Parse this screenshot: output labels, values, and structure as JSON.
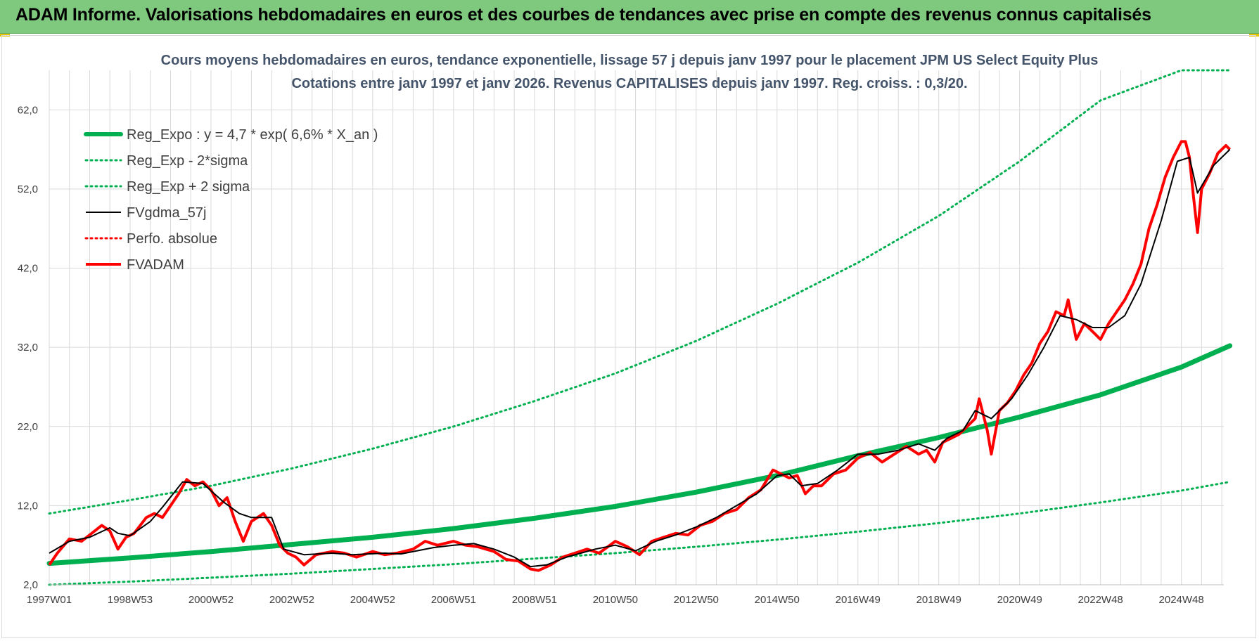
{
  "banner": {
    "title": "ADAM Informe. Valorisations hebdomadaires en euros et des courbes de tendances avec prise en compte des revenus connus capitalisés"
  },
  "colors": {
    "banner": "#7fc97f",
    "reg_expo": "#00b050",
    "fvgdma": "#000000",
    "fvadam": "#ff0000",
    "grid": "#d9d9d9",
    "title": "#44546a"
  },
  "chart_data": {
    "type": "line",
    "title": "Cours moyens hebdomadaires en euros, tendance exponentielle, lissage 57 j depuis janv 1997 pour le placement JPM US Select Equity Plus",
    "subtitle": "Cotations entre janv 1997 et janv 2026. Revenus CAPITALISES depuis janv 1997. Reg. croiss. : 0,3/20.",
    "xlabel": "",
    "ylabel": "",
    "xlim": [
      1997.0,
      2026.05
    ],
    "ylim": [
      2.0,
      67.0
    ],
    "grid": true,
    "legend_position": "top-left",
    "x_ticks": [
      {
        "label": "1997W01",
        "x": 1997.0
      },
      {
        "label": "1998W53",
        "x": 1999.0
      },
      {
        "label": "2000W52",
        "x": 2001.0
      },
      {
        "label": "2002W52",
        "x": 2003.0
      },
      {
        "label": "2004W52",
        "x": 2005.0
      },
      {
        "label": "2006W51",
        "x": 2007.0
      },
      {
        "label": "2008W51",
        "x": 2009.0
      },
      {
        "label": "2010W50",
        "x": 2011.0
      },
      {
        "label": "2012W50",
        "x": 2013.0
      },
      {
        "label": "2014W50",
        "x": 2015.0
      },
      {
        "label": "2016W49",
        "x": 2017.0
      },
      {
        "label": "2018W49",
        "x": 2019.0
      },
      {
        "label": "2020W49",
        "x": 2021.0
      },
      {
        "label": "2022W48",
        "x": 2023.0
      },
      {
        "label": "2024W48",
        "x": 2025.0
      }
    ],
    "y_ticks": [
      {
        "label": "2,0",
        "y": 2
      },
      {
        "label": "12,0",
        "y": 12
      },
      {
        "label": "22,0",
        "y": 22
      },
      {
        "label": "32,0",
        "y": 32
      },
      {
        "label": "42,0",
        "y": 42
      },
      {
        "label": "52,0",
        "y": 52
      },
      {
        "label": "62,0",
        "y": 62
      }
    ],
    "series": [
      {
        "name": "Reg_Expo : y = 4,7 * exp( 6,6% *  X_an )",
        "style": "solid-thick",
        "color": "#00b050",
        "x": [
          1997.0,
          1999.0,
          2001.0,
          2003.0,
          2005.0,
          2007.0,
          2009.0,
          2011.0,
          2013.0,
          2015.0,
          2017.0,
          2019.0,
          2021.0,
          2023.0,
          2025.0,
          2026.2
        ],
        "y": [
          4.7,
          5.4,
          6.2,
          7.1,
          8.0,
          9.1,
          10.4,
          11.9,
          13.7,
          15.8,
          18.3,
          20.6,
          23.2,
          26.0,
          29.5,
          32.2
        ]
      },
      {
        "name": "Reg_Exp - 2*sigma",
        "style": "dotted",
        "color": "#00b050",
        "x": [
          1997.0,
          1999.0,
          2001.0,
          2003.0,
          2005.0,
          2007.0,
          2009.0,
          2011.0,
          2013.0,
          2015.0,
          2017.0,
          2019.0,
          2021.0,
          2023.0,
          2025.0,
          2026.2
        ],
        "y": [
          2.0,
          2.4,
          2.9,
          3.4,
          4.0,
          4.6,
          5.3,
          6.0,
          6.8,
          7.7,
          8.7,
          9.8,
          11.0,
          12.4,
          13.9,
          15.0
        ]
      },
      {
        "name": "Reg_Exp + 2 sigma",
        "style": "dotted",
        "color": "#00b050",
        "x": [
          1997.0,
          1999.0,
          2001.0,
          2003.0,
          2005.0,
          2007.0,
          2009.0,
          2011.0,
          2013.0,
          2015.0,
          2017.0,
          2019.0,
          2021.0,
          2023.0,
          2025.0,
          2026.2
        ],
        "y": [
          11.0,
          12.7,
          14.5,
          16.7,
          19.2,
          22.0,
          25.2,
          28.7,
          32.8,
          37.5,
          42.7,
          48.6,
          55.5,
          63.2,
          67.0,
          67.0
        ]
      },
      {
        "name": "FVgdma_57j",
        "style": "solid-thin",
        "color": "#000000",
        "x": [
          1997.0,
          1997.5,
          1998.0,
          1998.5,
          1998.7,
          1999.0,
          1999.5,
          1999.8,
          2000.3,
          2000.8,
          2001.3,
          2001.7,
          2002.0,
          2002.5,
          2002.8,
          2003.3,
          2004.0,
          2004.5,
          2005.3,
          2005.7,
          2006.5,
          2007.0,
          2007.5,
          2008.0,
          2008.5,
          2008.9,
          2009.3,
          2009.8,
          2010.5,
          2011.0,
          2011.5,
          2012.0,
          2012.5,
          2013.0,
          2013.5,
          2014.0,
          2014.5,
          2015.0,
          2015.3,
          2015.6,
          2016.0,
          2016.5,
          2017.0,
          2017.5,
          2018.0,
          2018.5,
          2018.9,
          2019.2,
          2019.6,
          2019.9,
          2020.3,
          2020.8,
          2021.2,
          2021.6,
          2022.0,
          2022.4,
          2022.8,
          2023.2,
          2023.6,
          2024.0,
          2024.5,
          2024.9,
          2025.2,
          2025.4,
          2025.8,
          2026.2
        ],
        "y": [
          6.0,
          7.5,
          8.0,
          9.2,
          8.5,
          8.2,
          10.0,
          11.8,
          15.0,
          14.8,
          12.5,
          11.0,
          10.5,
          10.5,
          6.5,
          5.8,
          6.0,
          5.8,
          6.0,
          5.9,
          6.7,
          7.0,
          7.2,
          6.5,
          5.5,
          4.3,
          4.5,
          5.5,
          6.5,
          7.0,
          6.3,
          7.5,
          8.3,
          9.3,
          10.5,
          12.0,
          13.5,
          15.8,
          16.0,
          14.5,
          14.8,
          16.5,
          18.5,
          18.5,
          19.0,
          19.8,
          19.0,
          20.5,
          21.5,
          24.0,
          23.0,
          25.5,
          28.5,
          32.0,
          36.0,
          35.5,
          34.5,
          34.5,
          36.0,
          40.0,
          48.0,
          55.5,
          56.0,
          51.5,
          55.0,
          57.0
        ]
      },
      {
        "name": "Perfo. absolue",
        "style": "dotted",
        "color": "#ff0000",
        "x": [],
        "y": []
      },
      {
        "name": "FVADAM",
        "style": "solid-thick",
        "color": "#ff0000",
        "x": [
          1997.0,
          1997.2,
          1997.5,
          1997.8,
          1998.0,
          1998.3,
          1998.5,
          1998.7,
          1998.9,
          1999.1,
          1999.4,
          1999.6,
          1999.8,
          2000.0,
          2000.2,
          2000.4,
          2000.6,
          2000.8,
          2001.0,
          2001.2,
          2001.4,
          2001.6,
          2001.8,
          2002.0,
          2002.3,
          2002.5,
          2002.7,
          2002.9,
          2003.1,
          2003.3,
          2003.6,
          2004.0,
          2004.3,
          2004.6,
          2005.0,
          2005.3,
          2005.6,
          2006.0,
          2006.3,
          2006.6,
          2007.0,
          2007.3,
          2007.6,
          2008.0,
          2008.3,
          2008.6,
          2008.9,
          2009.1,
          2009.4,
          2009.7,
          2010.0,
          2010.3,
          2010.6,
          2011.0,
          2011.3,
          2011.6,
          2011.9,
          2012.2,
          2012.5,
          2012.8,
          2013.1,
          2013.4,
          2013.7,
          2014.0,
          2014.3,
          2014.6,
          2014.9,
          2015.1,
          2015.3,
          2015.5,
          2015.7,
          2015.9,
          2016.1,
          2016.4,
          2016.7,
          2017.0,
          2017.3,
          2017.6,
          2017.9,
          2018.2,
          2018.5,
          2018.7,
          2018.9,
          2019.1,
          2019.3,
          2019.5,
          2019.7,
          2019.9,
          2020.0,
          2020.2,
          2020.3,
          2020.5,
          2020.7,
          2020.9,
          2021.1,
          2021.3,
          2021.5,
          2021.7,
          2021.9,
          2022.1,
          2022.2,
          2022.4,
          2022.6,
          2022.8,
          2023.0,
          2023.2,
          2023.4,
          2023.6,
          2023.8,
          2024.0,
          2024.2,
          2024.4,
          2024.6,
          2024.8,
          2025.0,
          2025.1,
          2025.2,
          2025.3,
          2025.4,
          2025.5,
          2025.7,
          2025.9,
          2026.1,
          2026.2
        ],
        "y": [
          4.5,
          6.0,
          7.8,
          7.5,
          8.3,
          9.5,
          8.8,
          6.5,
          8.0,
          8.5,
          10.5,
          11.0,
          10.5,
          12.0,
          13.5,
          15.3,
          14.5,
          15.0,
          14.0,
          12.0,
          13.0,
          10.0,
          7.5,
          10.0,
          11.0,
          9.5,
          7.0,
          6.0,
          5.5,
          4.5,
          5.8,
          6.2,
          6.0,
          5.5,
          6.2,
          5.8,
          6.0,
          6.5,
          7.5,
          7.0,
          7.5,
          7.0,
          6.8,
          6.2,
          5.2,
          5.0,
          4.0,
          3.8,
          4.5,
          5.5,
          6.0,
          6.5,
          6.0,
          7.5,
          6.8,
          5.8,
          7.5,
          8.0,
          8.5,
          8.3,
          9.5,
          10.0,
          11.0,
          11.5,
          13.0,
          14.0,
          16.5,
          16.0,
          15.5,
          15.8,
          13.5,
          14.5,
          14.5,
          16.0,
          16.5,
          18.0,
          18.7,
          17.5,
          18.5,
          19.5,
          18.5,
          19.0,
          17.5,
          20.0,
          20.5,
          21.0,
          22.0,
          23.0,
          25.5,
          21.5,
          18.5,
          24.0,
          25.0,
          26.5,
          28.5,
          30.0,
          32.5,
          34.0,
          36.5,
          36.0,
          38.0,
          33.0,
          35.0,
          34.0,
          33.0,
          35.0,
          36.5,
          38.0,
          40.0,
          42.5,
          47.0,
          50.0,
          53.5,
          56.0,
          58.0,
          58.0,
          56.0,
          51.0,
          46.5,
          52.0,
          54.0,
          56.5,
          57.5,
          57.0
        ]
      }
    ]
  }
}
